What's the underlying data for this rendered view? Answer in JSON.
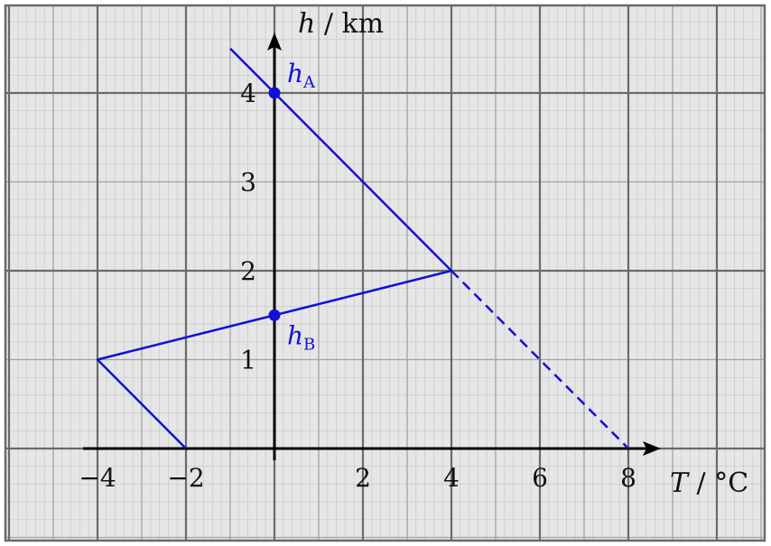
{
  "chart_data": {
    "type": "line",
    "xlabel": {
      "var": "T",
      "unit": " / °C"
    },
    "ylabel": {
      "var": "h",
      "unit": " / km"
    },
    "xlim": [
      -6,
      11
    ],
    "ylim": [
      -1,
      5
    ],
    "x_ticks": [
      -4,
      -2,
      2,
      4,
      6,
      8
    ],
    "x_tick_labels": [
      "−4",
      "−2",
      "2",
      "4",
      "6",
      "8"
    ],
    "y_ticks": [
      1,
      2,
      3,
      4
    ],
    "y_tick_labels": [
      "1",
      "2",
      "3",
      "4"
    ],
    "grid": {
      "major": 2,
      "mid": 1,
      "minor": 0.2
    },
    "series": [
      {
        "style": "solid",
        "points": [
          [
            -1,
            4.5
          ],
          [
            4,
            2
          ]
        ]
      },
      {
        "style": "solid",
        "points": [
          [
            4,
            2
          ],
          [
            -4,
            1
          ],
          [
            -2,
            0
          ]
        ]
      },
      {
        "style": "dashed",
        "points": [
          [
            4,
            2
          ],
          [
            8,
            0
          ]
        ]
      }
    ],
    "points": [
      {
        "x": 0,
        "y": 4,
        "label": "h",
        "sub": "A",
        "label_pos": "upper-right"
      },
      {
        "x": 0,
        "y": 1.5,
        "label": "h",
        "sub": "B",
        "label_pos": "lower-right"
      }
    ],
    "colors": {
      "line": "#1010d8",
      "background": "#e6e6e6",
      "grid_minor": "#c8c8c8",
      "grid_mid": "#a2a2a2",
      "grid_major": "#6a6a6a",
      "axis": "#000000"
    }
  }
}
